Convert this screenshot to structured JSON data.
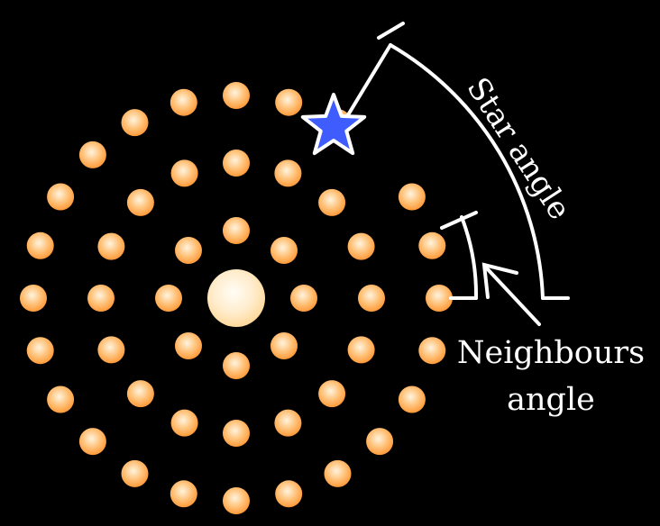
{
  "diagram": {
    "star_angle_label": "Star angle",
    "neighbours_label_line1": "Neighbours",
    "neighbours_label_line2": "angle",
    "colors": {
      "background": "#000000",
      "dot_fill": "#ffad55",
      "dot_core": "#fff2d9",
      "center_fill": "#ffe7b8",
      "star_fill": "#3f5cff",
      "star_stroke": "#ffffff",
      "line": "#ffffff"
    },
    "rings": [
      {
        "name": "inner",
        "count": 8
      },
      {
        "name": "middle",
        "count": 16
      },
      {
        "name": "outer",
        "count": 24
      }
    ]
  }
}
